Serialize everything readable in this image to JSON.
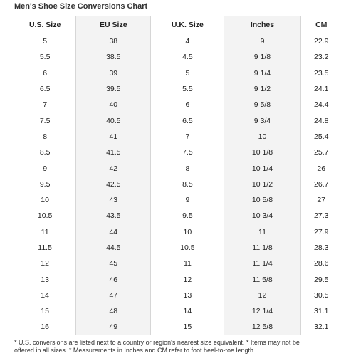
{
  "title": "Men's Shoe Size Conversions Chart",
  "columns": [
    "U.S. Size",
    "EU Size",
    "U.K. Size",
    "Inches",
    "CM"
  ],
  "rows": [
    [
      "5",
      "38",
      "4",
      "9",
      "22.9"
    ],
    [
      "5.5",
      "38.5",
      "4.5",
      "9 1/8",
      "23.2"
    ],
    [
      "6",
      "39",
      "5",
      "9 1/4",
      "23.5"
    ],
    [
      "6.5",
      "39.5",
      "5.5",
      "9 1/2",
      "24.1"
    ],
    [
      "7",
      "40",
      "6",
      "9 5/8",
      "24.4"
    ],
    [
      "7.5",
      "40.5",
      "6.5",
      "9 3/4",
      "24.8"
    ],
    [
      "8",
      "41",
      "7",
      "10",
      "25.4"
    ],
    [
      "8.5",
      "41.5",
      "7.5",
      "10 1/8",
      "25.7"
    ],
    [
      "9",
      "42",
      "8",
      "10 1/4",
      "26"
    ],
    [
      "9.5",
      "42.5",
      "8.5",
      "10 1/2",
      "26.7"
    ],
    [
      "10",
      "43",
      "9",
      "10 5/8",
      "27"
    ],
    [
      "10.5",
      "43.5",
      "9.5",
      "10 3/4",
      "27.3"
    ],
    [
      "11",
      "44",
      "10",
      "11",
      "27.9"
    ],
    [
      "11.5",
      "44.5",
      "10.5",
      "11 1/8",
      "28.3"
    ],
    [
      "12",
      "45",
      "11",
      "11 1/4",
      "28.6"
    ],
    [
      "13",
      "46",
      "12",
      "11 5/8",
      "29.5"
    ],
    [
      "14",
      "47",
      "13",
      "12",
      "30.5"
    ],
    [
      "15",
      "48",
      "14",
      "12 1/4",
      "31.1"
    ],
    [
      "16",
      "49",
      "15",
      "12 5/8",
      "32.1"
    ]
  ],
  "footnote": {
    "line1": "* U.S. conversions are listed next to a country or region's nearest size equivalent. * Items may not be",
    "line2": "offered in all sizes. * Measurements in Inches and CM refer to foot heel-to-toe length."
  },
  "colors": {
    "shaded_column": "#f3f3f3",
    "header_rule": "#c8c8c8",
    "text": "#222222"
  }
}
